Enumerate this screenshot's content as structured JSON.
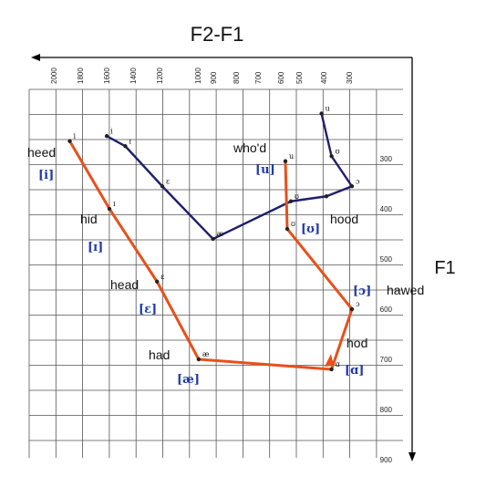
{
  "chart_data": {
    "type": "line",
    "title": "F2-F1",
    "xlabel": "",
    "ylabel": "F1",
    "x_axis_direction": "reversed (arrow pointing left)",
    "y_axis_direction": "downward (arrow pointing down)",
    "x_ticks": [
      "2000",
      "1800",
      "1600",
      "1400",
      "1200",
      "1000",
      "900",
      "800",
      "700",
      "600",
      "500",
      "400",
      "300"
    ],
    "y_ticks": [
      "300",
      "400",
      "500",
      "600",
      "700",
      "800",
      "900"
    ],
    "grid": true,
    "series": [
      {
        "color": "#1f1f6e",
        "points": [
          {
            "x": 1620,
            "y": 255,
            "mark": "i"
          },
          {
            "x": 1480,
            "y": 275,
            "mark": "ɪ"
          },
          {
            "x": 1200,
            "y": 355,
            "mark": "ɛ"
          },
          {
            "x": 920,
            "y": 460,
            "mark": "æ"
          },
          {
            "x": 560,
            "y": 385,
            "mark": "ʊ"
          },
          {
            "x": 400,
            "y": 375,
            "mark": ""
          },
          {
            "x": 300,
            "y": 355,
            "mark": "ɔ"
          },
          {
            "x": 380,
            "y": 295,
            "mark": "ʊ"
          },
          {
            "x": 420,
            "y": 210,
            "mark": "u"
          }
        ]
      },
      {
        "color": "#e8501a",
        "points": [
          {
            "x": 1900,
            "y": 265,
            "mark": "i"
          },
          {
            "x": 1600,
            "y": 400,
            "mark": "ɪ"
          },
          {
            "x": 1240,
            "y": 545,
            "mark": "ɛ"
          },
          {
            "x": 1010,
            "y": 700,
            "mark": "æ"
          },
          {
            "x": 380,
            "y": 720,
            "mark": "ɑ"
          },
          {
            "x": 300,
            "y": 600,
            "mark": "ɔ"
          },
          {
            "x": 580,
            "y": 440,
            "mark": "ʊ"
          },
          {
            "x": 590,
            "y": 305,
            "mark": "u"
          }
        ]
      }
    ],
    "word_labels": [
      {
        "word": "heed",
        "ipa": "[i]"
      },
      {
        "word": "hid",
        "ipa": "[ɪ]"
      },
      {
        "word": "head",
        "ipa": "[ɛ]"
      },
      {
        "word": "had",
        "ipa": "[æ]"
      },
      {
        "word": "who'd",
        "ipa": "[u]"
      },
      {
        "word": "hood",
        "ipa": "[ʊ]"
      },
      {
        "word": "hawed",
        "ipa": "[ɔ]"
      },
      {
        "word": "hod",
        "ipa": "[ɑ]"
      }
    ]
  }
}
